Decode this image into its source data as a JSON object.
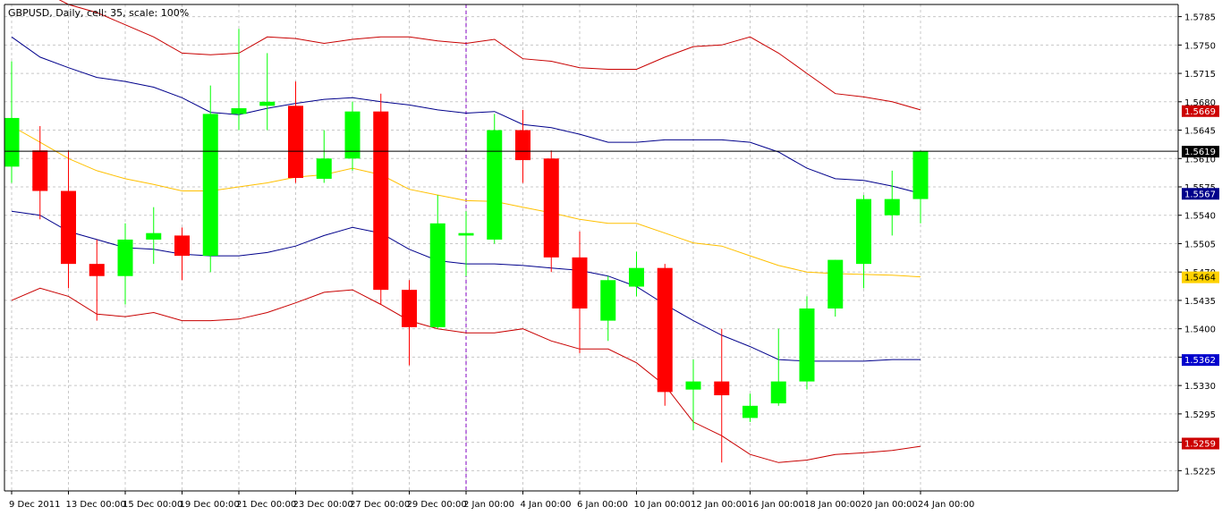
{
  "header": {
    "text": "GBPUSD, Daily, cell: 35, scale: 100%"
  },
  "colors": {
    "background": "#ffffff",
    "grid": "#c8c8c8",
    "bull": "#00ff00",
    "bear": "#ff0000",
    "outer_band": "#c80000",
    "inner_band": "#00008b",
    "middle_band": "#ffc000",
    "period_separator": "#8000c0",
    "price_line": "#000000"
  },
  "chart_data": {
    "type": "candlestick",
    "symbol": "GBPUSD",
    "timeframe": "Daily",
    "ylim": [
      1.52,
      1.58
    ],
    "y_ticks": [
      "1.5785",
      "1.5750",
      "1.5715",
      "1.5680",
      "1.5645",
      "1.5610",
      "1.5575",
      "1.5540",
      "1.5505",
      "1.5470",
      "1.5435",
      "1.5400",
      "1.5365",
      "1.5330",
      "1.5295",
      "1.5260",
      "1.5225"
    ],
    "x_labels": [
      {
        "i": 0,
        "text": "9 Dec 2011"
      },
      {
        "i": 2,
        "text": "13 Dec 00:00"
      },
      {
        "i": 4,
        "text": "15 Dec 00:00"
      },
      {
        "i": 6,
        "text": "19 Dec 00:00"
      },
      {
        "i": 8,
        "text": "21 Dec 00:00"
      },
      {
        "i": 10,
        "text": "23 Dec 00:00"
      },
      {
        "i": 12,
        "text": "27 Dec 00:00"
      },
      {
        "i": 14,
        "text": "29 Dec 00:00"
      },
      {
        "i": 16,
        "text": "2 Jan 00:00"
      },
      {
        "i": 18,
        "text": "4 Jan 00:00"
      },
      {
        "i": 20,
        "text": "6 Jan 00:00"
      },
      {
        "i": 22,
        "text": "10 Jan 00:00"
      },
      {
        "i": 24,
        "text": "12 Jan 00:00"
      },
      {
        "i": 26,
        "text": "16 Jan 00:00"
      },
      {
        "i": 28,
        "text": "18 Jan 00:00"
      },
      {
        "i": 30,
        "text": "20 Jan 00:00"
      },
      {
        "i": 32,
        "text": "24 Jan 00:00"
      }
    ],
    "candles": [
      {
        "o": 1.56,
        "h": 1.573,
        "l": 1.558,
        "c": 1.566
      },
      {
        "o": 1.562,
        "h": 1.565,
        "l": 1.5535,
        "c": 1.557
      },
      {
        "o": 1.557,
        "h": 1.562,
        "l": 1.545,
        "c": 1.548
      },
      {
        "o": 1.548,
        "h": 1.551,
        "l": 1.541,
        "c": 1.5465
      },
      {
        "o": 1.5465,
        "h": 1.553,
        "l": 1.543,
        "c": 1.551
      },
      {
        "o": 1.551,
        "h": 1.555,
        "l": 1.548,
        "c": 1.5518
      },
      {
        "o": 1.5515,
        "h": 1.5525,
        "l": 1.546,
        "c": 1.549
      },
      {
        "o": 1.549,
        "h": 1.57,
        "l": 1.547,
        "c": 1.5665
      },
      {
        "o": 1.5665,
        "h": 1.577,
        "l": 1.5645,
        "c": 1.5672
      },
      {
        "o": 1.5675,
        "h": 1.574,
        "l": 1.5645,
        "c": 1.568
      },
      {
        "o": 1.5675,
        "h": 1.5705,
        "l": 1.558,
        "c": 1.5586
      },
      {
        "o": 1.5585,
        "h": 1.5645,
        "l": 1.558,
        "c": 1.561
      },
      {
        "o": 1.561,
        "h": 1.568,
        "l": 1.5595,
        "c": 1.5668
      },
      {
        "o": 1.5668,
        "h": 1.569,
        "l": 1.543,
        "c": 1.5448
      },
      {
        "o": 1.5448,
        "h": 1.546,
        "l": 1.5355,
        "c": 1.5402
      },
      {
        "o": 1.5402,
        "h": 1.5565,
        "l": 1.54,
        "c": 1.553
      },
      {
        "o": 1.5515,
        "h": 1.5545,
        "l": 1.5465,
        "c": 1.5518
      },
      {
        "o": 1.551,
        "h": 1.5665,
        "l": 1.5505,
        "c": 1.5645
      },
      {
        "o": 1.5645,
        "h": 1.567,
        "l": 1.558,
        "c": 1.5608
      },
      {
        "o": 1.561,
        "h": 1.562,
        "l": 1.547,
        "c": 1.5488
      },
      {
        "o": 1.5488,
        "h": 1.552,
        "l": 1.537,
        "c": 1.5425
      },
      {
        "o": 1.541,
        "h": 1.5465,
        "l": 1.5385,
        "c": 1.546
      },
      {
        "o": 1.5452,
        "h": 1.5495,
        "l": 1.544,
        "c": 1.5475
      },
      {
        "o": 1.5475,
        "h": 1.548,
        "l": 1.5305,
        "c": 1.5322
      },
      {
        "o": 1.5325,
        "h": 1.5362,
        "l": 1.5275,
        "c": 1.5335
      },
      {
        "o": 1.5335,
        "h": 1.54,
        "l": 1.5235,
        "c": 1.5318
      },
      {
        "o": 1.529,
        "h": 1.532,
        "l": 1.5285,
        "c": 1.5305
      },
      {
        "o": 1.5308,
        "h": 1.54,
        "l": 1.5305,
        "c": 1.5335
      },
      {
        "o": 1.5335,
        "h": 1.544,
        "l": 1.5325,
        "c": 1.5425
      },
      {
        "o": 1.5425,
        "h": 1.5485,
        "l": 1.5415,
        "c": 1.5485
      },
      {
        "o": 1.548,
        "h": 1.5565,
        "l": 1.545,
        "c": 1.556
      },
      {
        "o": 1.554,
        "h": 1.5595,
        "l": 1.5515,
        "c": 1.556
      },
      {
        "o": 1.556,
        "h": 1.562,
        "l": 1.553,
        "c": 1.5619
      }
    ],
    "outer_upper": [
      1.584,
      1.5818,
      1.58,
      1.579,
      1.5775,
      1.576,
      1.574,
      1.5738,
      1.574,
      1.576,
      1.5758,
      1.5752,
      1.5757,
      1.576,
      1.576,
      1.5755,
      1.5752,
      1.5757,
      1.5733,
      1.573,
      1.5722,
      1.572,
      1.572,
      1.5735,
      1.5748,
      1.575,
      1.576,
      1.574,
      1.5715,
      1.569,
      1.5686,
      1.568,
      1.567
    ],
    "outer_lower": [
      1.5435,
      1.545,
      1.544,
      1.5418,
      1.5415,
      1.542,
      1.541,
      1.541,
      1.5412,
      1.542,
      1.5432,
      1.5445,
      1.5448,
      1.543,
      1.541,
      1.54,
      1.5395,
      1.5395,
      1.54,
      1.5385,
      1.5375,
      1.5375,
      1.5358,
      1.533,
      1.5285,
      1.5268,
      1.5245,
      1.5235,
      1.5238,
      1.5245,
      1.5247,
      1.525,
      1.5255
    ],
    "inner_upper": [
      1.576,
      1.5735,
      1.5722,
      1.571,
      1.5705,
      1.5698,
      1.5685,
      1.5667,
      1.5664,
      1.5672,
      1.5678,
      1.5683,
      1.5685,
      1.568,
      1.5676,
      1.567,
      1.5666,
      1.5668,
      1.5652,
      1.5648,
      1.564,
      1.563,
      1.563,
      1.5633,
      1.5633,
      1.5633,
      1.563,
      1.5618,
      1.5598,
      1.5585,
      1.5583,
      1.5576,
      1.5567
    ],
    "inner_lower": [
      1.5545,
      1.554,
      1.552,
      1.551,
      1.55,
      1.5498,
      1.5492,
      1.549,
      1.549,
      1.5494,
      1.5502,
      1.5515,
      1.5525,
      1.5518,
      1.5498,
      1.5484,
      1.548,
      1.548,
      1.5478,
      1.5475,
      1.5472,
      1.5465,
      1.5452,
      1.543,
      1.541,
      1.5392,
      1.5378,
      1.5362,
      1.536,
      1.536,
      1.536,
      1.5362,
      1.5362
    ],
    "middle": [
      1.565,
      1.563,
      1.561,
      1.5595,
      1.5585,
      1.5578,
      1.557,
      1.557,
      1.5575,
      1.558,
      1.5587,
      1.559,
      1.5598,
      1.559,
      1.5572,
      1.5565,
      1.5558,
      1.5557,
      1.555,
      1.5543,
      1.5535,
      1.553,
      1.553,
      1.5518,
      1.5506,
      1.5502,
      1.549,
      1.5478,
      1.547,
      1.5468,
      1.5467,
      1.5466,
      1.5464
    ],
    "price_labels": [
      {
        "value": 1.5669,
        "text": "1.5669",
        "bg": "#cc0000",
        "fg": "#ffffff"
      },
      {
        "value": 1.5619,
        "text": "1.5619",
        "bg": "#000000",
        "fg": "#ffffff"
      },
      {
        "value": 1.5567,
        "text": "1.5567",
        "bg": "#00008b",
        "fg": "#ffffff"
      },
      {
        "value": 1.5464,
        "text": "1.5464",
        "bg": "#ffd200",
        "fg": "#000000"
      },
      {
        "value": 1.5362,
        "text": "1.5362",
        "bg": "#0000cc",
        "fg": "#ffffff"
      },
      {
        "value": 1.5259,
        "text": "1.5259",
        "bg": "#cc0000",
        "fg": "#ffffff"
      }
    ],
    "current_price": 1.5619,
    "separator_index": 16,
    "grid": true
  }
}
